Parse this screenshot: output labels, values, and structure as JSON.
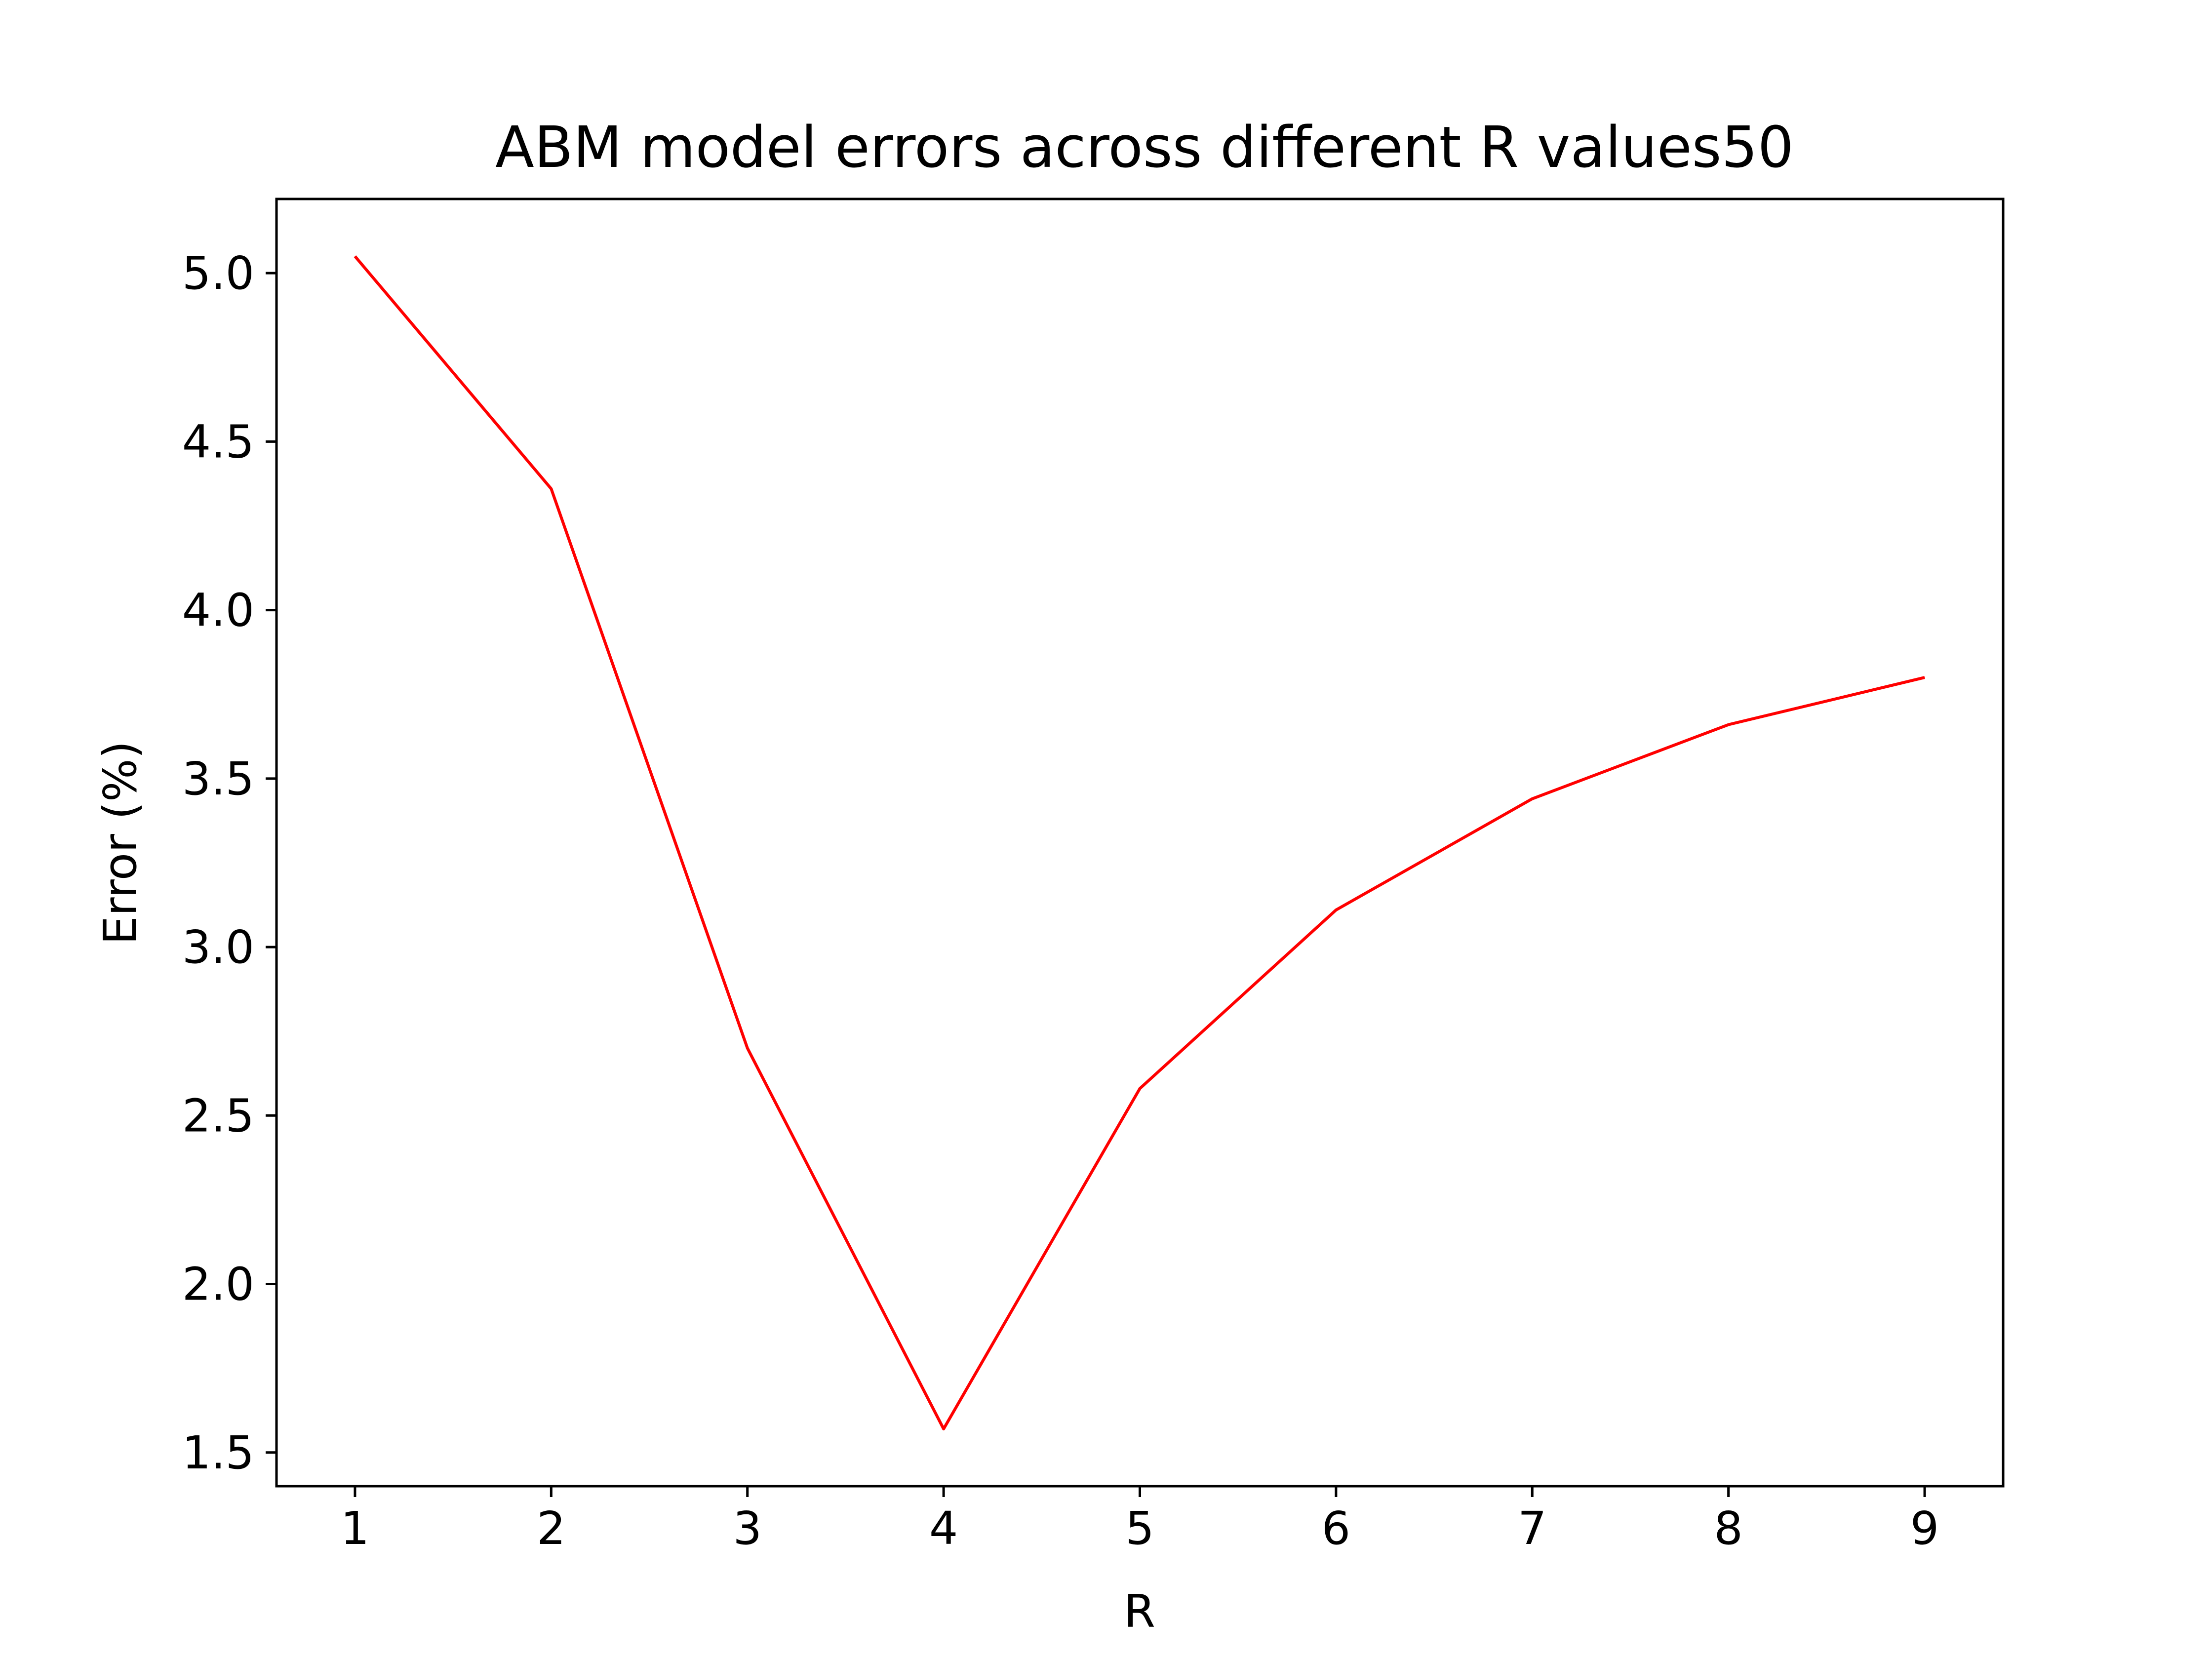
{
  "chart_data": {
    "type": "line",
    "title": "ABM model errors across different R values50",
    "xlabel": "R",
    "ylabel": "Error (%)",
    "x": [
      1,
      2,
      3,
      4,
      5,
      6,
      7,
      8,
      9
    ],
    "series": [
      {
        "values": [
          5.05,
          4.36,
          2.7,
          1.57,
          2.58,
          3.11,
          3.44,
          3.66,
          3.8
        ],
        "color": "#ff0000"
      }
    ],
    "xticks": [
      1,
      2,
      3,
      4,
      5,
      6,
      7,
      8,
      9
    ],
    "yticks": [
      "1.5",
      "2.0",
      "2.5",
      "3.0",
      "3.5",
      "4.0",
      "4.5",
      "5.0"
    ],
    "xlim": [
      0.6,
      9.4
    ],
    "ylim": [
      1.4,
      5.22
    ],
    "grid": false,
    "legend": "none"
  }
}
